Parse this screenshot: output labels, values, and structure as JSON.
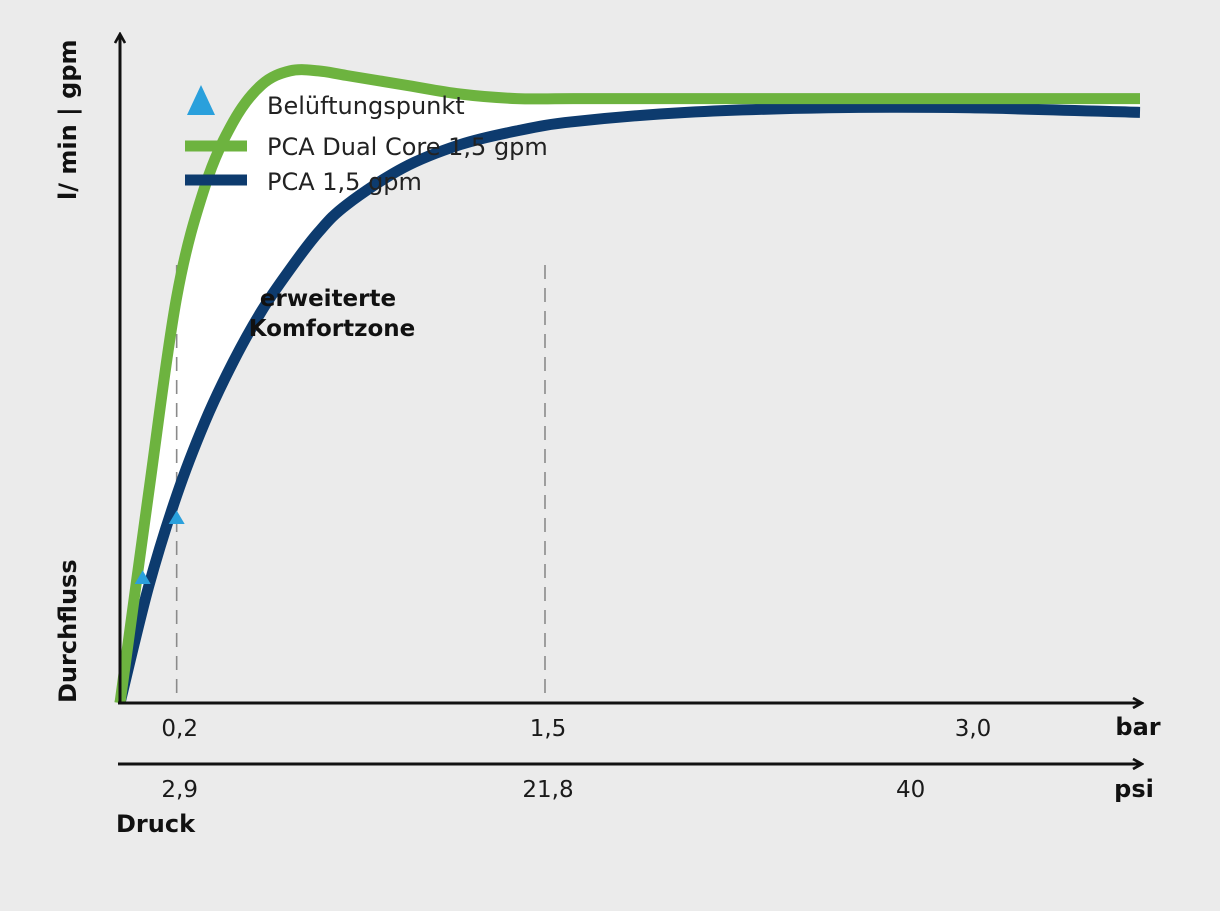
{
  "chart_data": {
    "type": "line",
    "title": "",
    "x_unit_primary": "bar",
    "x_unit_secondary": "psi",
    "xlabel": "Druck",
    "ylabel_top": "l/ min | gpm",
    "ylabel_bottom": "Durchfluss",
    "x_ticks_bar": [
      "0,2",
      "1,5",
      "3,0"
    ],
    "x_ticks_bar_values": [
      0.2,
      1.5,
      3.0
    ],
    "x_ticks_psi": [
      "2,9",
      "21,8",
      "40"
    ],
    "x_ticks_psi_values_bar": [
      0.2,
      1.5,
      2.78
    ],
    "xlim": [
      0,
      3.6
    ],
    "ylim": [
      0,
      1.45
    ],
    "y_scale": "relative (no ticks)",
    "grid_lines_x": [
      0.2,
      1.5
    ],
    "legend": {
      "placement": "top-left",
      "items": [
        {
          "marker": "triangle",
          "label": "Belüftungspunkt",
          "color": "#2aa0dc"
        },
        {
          "marker": "line",
          "label": "PCA Dual Core 1,5 gpm",
          "color": "#6db33f"
        },
        {
          "marker": "line",
          "label": "PCA 1,5 gpm",
          "color": "#0d3b6e"
        }
      ]
    },
    "series": [
      {
        "name": "PCA Dual Core 1,5 gpm",
        "color": "#6db33f",
        "x": [
          0.0,
          0.1,
          0.2,
          0.3,
          0.4,
          0.5,
          0.6,
          0.7,
          0.8,
          1.0,
          1.2,
          1.4,
          1.6,
          2.0,
          2.5,
          3.0,
          3.6
        ],
        "y": [
          0.0,
          0.45,
          0.88,
          1.12,
          1.26,
          1.34,
          1.37,
          1.37,
          1.36,
          1.34,
          1.32,
          1.31,
          1.31,
          1.31,
          1.31,
          1.31,
          1.31
        ]
      },
      {
        "name": "PCA 1,5 gpm",
        "color": "#0d3b6e",
        "x": [
          0.0,
          0.1,
          0.2,
          0.3,
          0.4,
          0.5,
          0.6,
          0.7,
          0.8,
          1.0,
          1.2,
          1.4,
          1.6,
          2.0,
          2.5,
          3.0,
          3.6
        ],
        "y": [
          0.0,
          0.25,
          0.45,
          0.61,
          0.74,
          0.85,
          0.94,
          1.02,
          1.08,
          1.16,
          1.21,
          1.24,
          1.26,
          1.28,
          1.29,
          1.29,
          1.28
        ]
      }
    ],
    "aeration_points": [
      {
        "series": "PCA Dual Core 1,5 gpm",
        "x": 0.08,
        "y": 0.27,
        "color": "#2aa0dc"
      },
      {
        "series": "PCA 1,5 gpm",
        "x": 0.2,
        "y": 0.4,
        "color": "#2aa0dc"
      }
    ],
    "annotations": [
      {
        "text_lines": [
          "erweiterte",
          "Komfortzone"
        ],
        "meaning": "area between the two curves"
      }
    ]
  }
}
